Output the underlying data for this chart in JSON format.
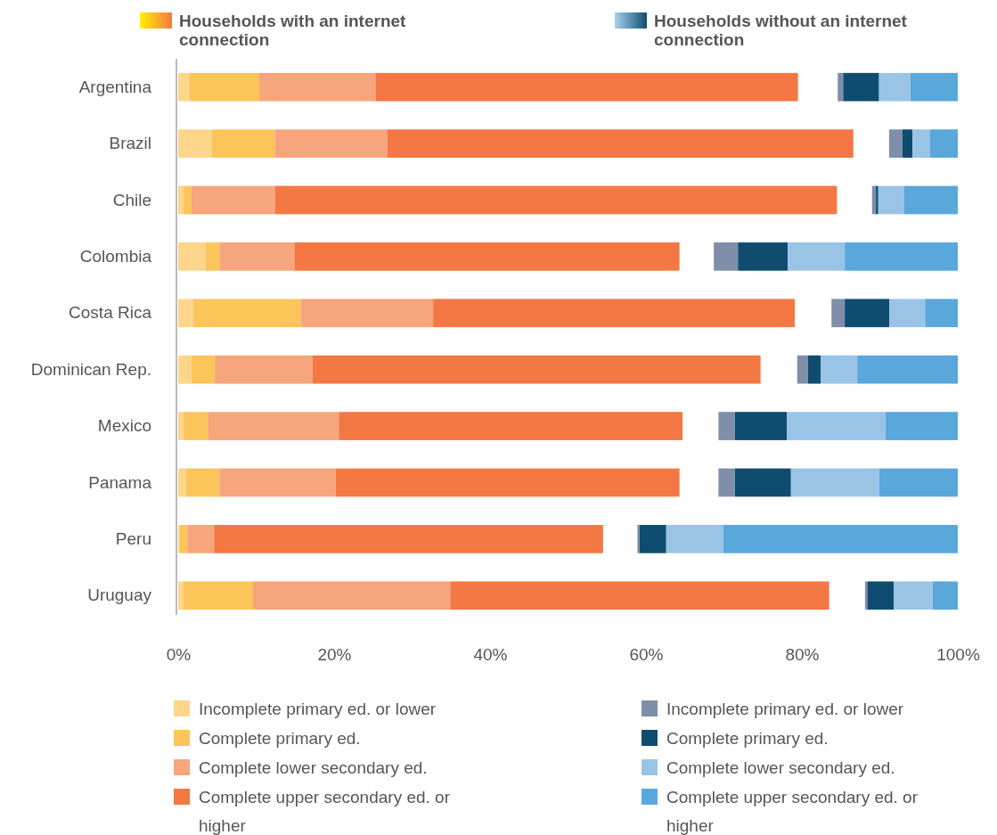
{
  "chart_data": {
    "type": "bar",
    "orientation": "horizontal",
    "legend": "bottom",
    "categories": [
      "Argentina",
      "Brazil",
      "Chile",
      "Colombia",
      "Costa Rica",
      "Dominican Rep.",
      "Mexico",
      "Panama",
      "Peru",
      "Uruguay"
    ],
    "xlim": [
      0,
      100
    ],
    "xticks": [
      {
        "value": 0,
        "label": "0%"
      },
      {
        "value": 20,
        "label": "20%"
      },
      {
        "value": 40,
        "label": "40%"
      },
      {
        "value": 60,
        "label": "60%"
      },
      {
        "value": 80,
        "label": "80%"
      },
      {
        "value": 100,
        "label": "100%"
      }
    ],
    "annotations": [
      "Households with an internet connection",
      "Households without an internet connection"
    ],
    "series": [
      {
        "name": "Incomplete primary ed. or lower",
        "color": "#fdd68c",
        "base": [
          0,
          0,
          0,
          0,
          0,
          0,
          0,
          0,
          0,
          0
        ],
        "values": [
          1.4,
          4.3,
          0.7,
          3.5,
          1.9,
          1.7,
          0.7,
          1.0,
          0.2,
          0.6
        ]
      },
      {
        "name": "Complete primary ed.",
        "color": "#fcc55a",
        "base": [
          1.4,
          4.3,
          0.7,
          3.5,
          1.9,
          1.7,
          0.7,
          1.0,
          0.2,
          0.6
        ],
        "values": [
          9.0,
          8.1,
          1.0,
          1.8,
          13.8,
          3.0,
          3.1,
          4.3,
          1.0,
          9.0
        ]
      },
      {
        "name": "Complete lower secondary ed.",
        "color": "#f6a57c",
        "base": [
          10.4,
          12.4,
          1.7,
          5.3,
          15.7,
          4.7,
          3.8,
          5.3,
          1.2,
          9.6
        ],
        "values": [
          14.9,
          14.4,
          10.7,
          9.6,
          17.0,
          12.5,
          16.8,
          14.9,
          3.4,
          25.3
        ]
      },
      {
        "name": "Complete upper secondary ed. or higher",
        "color": "#f37843",
        "base": [
          25.3,
          26.8,
          12.4,
          14.9,
          32.7,
          17.2,
          20.6,
          20.2,
          4.6,
          34.9
        ],
        "values": [
          54.2,
          59.8,
          72.1,
          49.4,
          46.4,
          57.5,
          44.1,
          44.1,
          49.9,
          48.6
        ]
      },
      {
        "name": "Incomplete primary ed. or lower",
        "color": "#7f8ea9",
        "base": [
          84.6,
          91.2,
          89.0,
          68.7,
          83.8,
          79.4,
          69.3,
          69.3,
          58.9,
          88.1
        ],
        "values": [
          0.7,
          1.7,
          0.5,
          3.1,
          1.7,
          1.4,
          2.1,
          2.1,
          0.3,
          0.3
        ]
      },
      {
        "name": "Complete primary ed.",
        "color": "#0e4d6f",
        "base": [
          85.3,
          92.9,
          89.5,
          71.8,
          85.5,
          80.8,
          71.4,
          71.4,
          59.2,
          88.4
        ],
        "values": [
          4.6,
          1.3,
          0.3,
          6.4,
          5.7,
          1.6,
          6.7,
          7.2,
          3.4,
          3.4
        ]
      },
      {
        "name": "Complete lower secondary ed.",
        "color": "#9ac4e6",
        "base": [
          89.9,
          94.2,
          89.8,
          78.2,
          91.2,
          82.4,
          78.1,
          78.6,
          62.6,
          91.8
        ],
        "values": [
          4.0,
          2.2,
          3.3,
          7.3,
          4.6,
          4.7,
          12.6,
          11.3,
          7.3,
          5.0
        ]
      },
      {
        "name": "Complete upper secondary ed. or higher",
        "color": "#5aa7dc",
        "base": [
          93.9,
          96.4,
          93.1,
          85.5,
          95.8,
          87.1,
          90.7,
          89.9,
          69.9,
          96.8
        ],
        "values": [
          6.1,
          3.6,
          6.9,
          14.5,
          4.2,
          12.9,
          9.3,
          10.1,
          30.1,
          3.2
        ]
      }
    ]
  }
}
